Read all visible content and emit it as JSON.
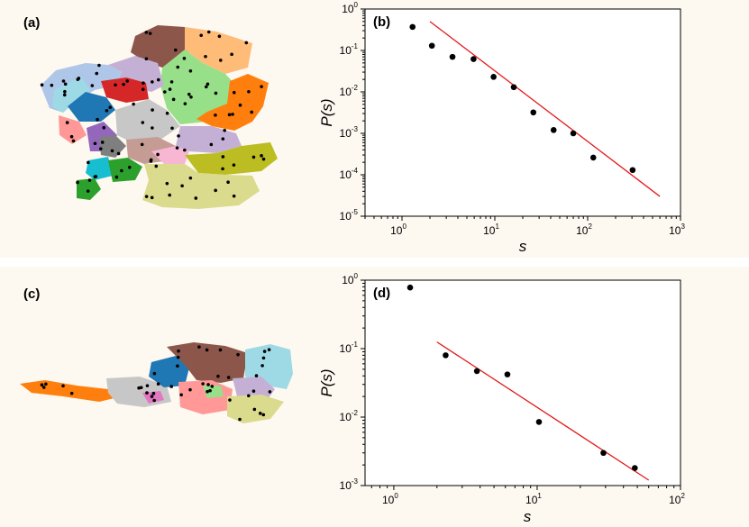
{
  "panels": {
    "a": {
      "label": "(a)"
    },
    "b": {
      "label": "(b)"
    },
    "c": {
      "label": "(c)"
    },
    "d": {
      "label": "(d)"
    }
  },
  "colors": {
    "points": "#000000",
    "fit": "#e41a1c",
    "background": "#fdf8f0"
  },
  "chart_data": [
    {
      "id": "b",
      "type": "scatter",
      "title": "(b)",
      "xlabel": "s",
      "ylabel": "P(s)",
      "xscale": "log",
      "yscale": "log",
      "xlim": [
        0.4,
        1000
      ],
      "ylim": [
        1e-05,
        1
      ],
      "xticks": [
        {
          "base": "10",
          "exp": "0"
        },
        {
          "base": "10",
          "exp": "1"
        },
        {
          "base": "10",
          "exp": "2"
        },
        {
          "base": "10",
          "exp": "3"
        }
      ],
      "yticks": [
        {
          "base": "10",
          "exp": "-5"
        },
        {
          "base": "10",
          "exp": "-4"
        },
        {
          "base": "10",
          "exp": "-3"
        },
        {
          "base": "10",
          "exp": "-2"
        },
        {
          "base": "10",
          "exp": "-1"
        },
        {
          "base": "10",
          "exp": "0"
        }
      ],
      "series": [
        {
          "name": "data",
          "x": [
            1.3,
            2.1,
            3.5,
            5.9,
            9.7,
            16,
            26,
            43,
            70,
            115,
            305
          ],
          "y": [
            0.37,
            0.13,
            0.07,
            0.062,
            0.023,
            0.013,
            0.0032,
            0.0012,
            0.001,
            0.00026,
            0.00013
          ]
        },
        {
          "name": "fit",
          "x": [
            2.0,
            600
          ],
          "y": [
            0.5,
            3e-05
          ]
        }
      ]
    },
    {
      "id": "d",
      "type": "scatter",
      "title": "(d)",
      "xlabel": "s",
      "ylabel": "P(s)",
      "xscale": "log",
      "yscale": "log",
      "xlim": [
        0.63,
        100
      ],
      "ylim": [
        0.001,
        1
      ],
      "xticks": [
        {
          "base": "10",
          "exp": "0"
        },
        {
          "base": "10",
          "exp": "1"
        },
        {
          "base": "10",
          "exp": "2"
        }
      ],
      "yticks": [
        {
          "base": "10",
          "exp": "-3"
        },
        {
          "base": "10",
          "exp": "-2"
        },
        {
          "base": "10",
          "exp": "-1"
        },
        {
          "base": "10",
          "exp": "0"
        }
      ],
      "series": [
        {
          "name": "data",
          "x": [
            1.3,
            2.3,
            3.8,
            6.2,
            10.3,
            29,
            48
          ],
          "y": [
            0.78,
            0.08,
            0.047,
            0.042,
            0.0085,
            0.003,
            0.0018
          ]
        },
        {
          "name": "fit",
          "x": [
            2.0,
            60
          ],
          "y": [
            0.125,
            0.0012
          ]
        }
      ]
    }
  ]
}
